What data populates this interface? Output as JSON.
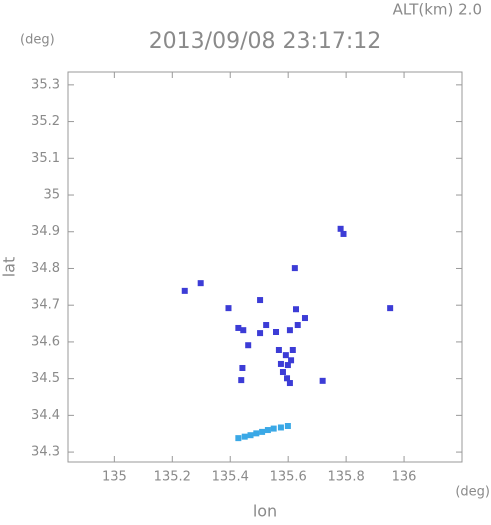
{
  "chart_data": {
    "type": "scatter",
    "title": "2013/09/08 23:17:12",
    "annotation": "ALT(km) 2.0",
    "y_unit": "(deg)",
    "x_unit": "(deg)",
    "xlabel": "lon",
    "ylabel": "lat",
    "xlim": [
      134.84,
      136.2
    ],
    "ylim": [
      34.273,
      35.335
    ],
    "xticks": [
      135.0,
      135.2,
      135.4,
      135.6,
      135.8,
      136.0
    ],
    "yticks": [
      34.3,
      34.4,
      34.5,
      34.6,
      34.7,
      34.8,
      34.9,
      35.0,
      35.1,
      35.2,
      35.3
    ],
    "series": [
      {
        "color": "#3c3cd6",
        "x": [
          135.243,
          135.298,
          135.394,
          135.503,
          135.623,
          135.781,
          135.791,
          135.952,
          135.428,
          135.445,
          135.462,
          135.524,
          135.558,
          135.606,
          135.633,
          135.658,
          135.568,
          135.592,
          135.616,
          135.599,
          135.582,
          135.596,
          135.606,
          135.438,
          135.442,
          135.719,
          135.503,
          135.627,
          135.575,
          135.61
        ],
        "values": [
          34.739,
          34.76,
          34.692,
          34.714,
          34.801,
          34.908,
          34.894,
          34.692,
          34.638,
          34.632,
          34.591,
          34.646,
          34.627,
          34.632,
          34.646,
          34.665,
          34.578,
          34.564,
          34.578,
          34.537,
          34.518,
          34.501,
          34.488,
          34.496,
          34.529,
          34.494,
          34.624,
          34.689,
          34.54,
          34.55
        ]
      },
      {
        "color": "#3aa8e6",
        "x": [
          135.428,
          135.45,
          135.47,
          135.49,
          135.51,
          135.53,
          135.55,
          135.575,
          135.599
        ],
        "values": [
          34.338,
          34.342,
          34.346,
          34.351,
          34.355,
          34.36,
          34.364,
          34.367,
          34.371
        ]
      }
    ]
  }
}
